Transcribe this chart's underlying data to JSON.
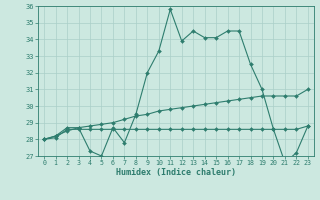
{
  "xlabel": "Humidex (Indice chaleur)",
  "hours": [
    0,
    1,
    2,
    3,
    4,
    5,
    6,
    7,
    8,
    9,
    10,
    11,
    12,
    13,
    14,
    15,
    16,
    17,
    18,
    19,
    20,
    21,
    22,
    23
  ],
  "line1": [
    28.0,
    28.2,
    28.7,
    28.7,
    27.3,
    27.0,
    28.7,
    27.8,
    29.5,
    32.0,
    33.3,
    35.8,
    33.9,
    34.5,
    34.1,
    34.1,
    34.5,
    34.5,
    32.5,
    31.0,
    28.6,
    26.6,
    27.2,
    28.8
  ],
  "line2": [
    28.0,
    28.1,
    28.6,
    28.6,
    28.6,
    28.6,
    28.6,
    28.6,
    28.6,
    28.6,
    28.6,
    28.6,
    28.6,
    28.6,
    28.6,
    28.6,
    28.6,
    28.6,
    28.6,
    28.6,
    28.6,
    28.6,
    28.6,
    28.8
  ],
  "line3": [
    28.0,
    28.2,
    28.5,
    28.7,
    28.8,
    28.9,
    29.0,
    29.2,
    29.4,
    29.5,
    29.7,
    29.8,
    29.9,
    30.0,
    30.1,
    30.2,
    30.3,
    30.4,
    30.5,
    30.6,
    30.6,
    30.6,
    30.6,
    31.0
  ],
  "line_color": "#2e7d6e",
  "bg_color": "#cce8e0",
  "grid_color": "#aacfc8",
  "ylim": [
    27,
    36
  ],
  "yticks": [
    27,
    28,
    29,
    30,
    31,
    32,
    33,
    34,
    35,
    36
  ],
  "xticks": [
    0,
    1,
    2,
    3,
    4,
    5,
    6,
    7,
    8,
    9,
    10,
    11,
    12,
    13,
    14,
    15,
    16,
    17,
    18,
    19,
    20,
    21,
    22,
    23
  ]
}
